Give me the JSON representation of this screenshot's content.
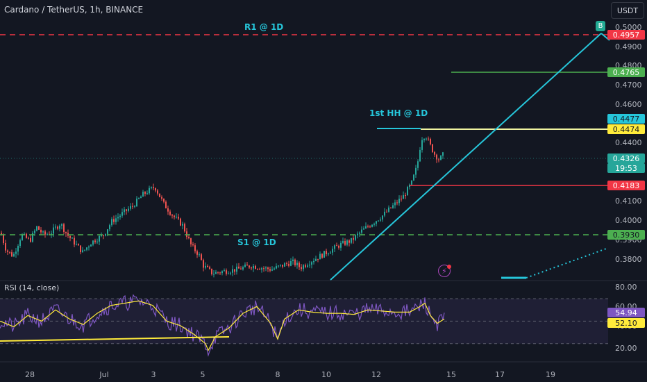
{
  "header": {
    "symbol_title": "Cardano / TetherUS, 1h, BINANCE",
    "currency_button": "USDT"
  },
  "colors": {
    "background": "#131722",
    "up": "#26a69a",
    "down": "#ef5350",
    "trend_line": "#26c6da",
    "resistance_dashed": "#f23645",
    "support_dashed": "#4caf50",
    "rsi_line": "#7e57c2",
    "rsi_ma": "#ffeb3b",
    "rsi_band": "rgba(126,87,194,0.12)"
  },
  "drawings": {
    "r1_label": "R1 @ 1D",
    "s1_label": "S1 @ 1D",
    "hh_label": "1st HH @ 1D",
    "b_marker": "B"
  },
  "price_axis": {
    "ticks": [
      "0.5000",
      "0.4900",
      "0.4800",
      "0.4700",
      "0.4600",
      "0.4400",
      "0.4300",
      "0.4100",
      "0.4000",
      "0.3900",
      "0.3800"
    ],
    "levels": [
      {
        "name": "r1",
        "value": "0.4957",
        "color": "#f23645",
        "text_dark": false
      },
      {
        "name": "green",
        "value": "0.4765",
        "color": "#4caf50",
        "text_dark": false
      },
      {
        "name": "hh-cyan",
        "value": "0.4477",
        "color": "#26c6da",
        "text_dark": true
      },
      {
        "name": "hh-yellow",
        "value": "0.4474",
        "color": "#ffeb3b",
        "text_dark": true
      },
      {
        "name": "last",
        "value": "0.4326",
        "countdown": "19:53",
        "color": "#26a69a",
        "text_dark": false
      },
      {
        "name": "red",
        "value": "0.4183",
        "color": "#f23645",
        "text_dark": false
      },
      {
        "name": "s1",
        "value": "0.3930",
        "color": "#4caf50",
        "text_dark": true
      }
    ]
  },
  "rsi": {
    "title": "RSI (14, close)",
    "ticks": [
      "80.00",
      "60.00",
      "40.00",
      "20.00"
    ],
    "value": "54.94",
    "ma_value": "52.10"
  },
  "time_axis": {
    "labels": [
      "28",
      "Jul",
      "3",
      "5",
      "8",
      "10",
      "12",
      "15",
      "17",
      "19"
    ]
  }
}
